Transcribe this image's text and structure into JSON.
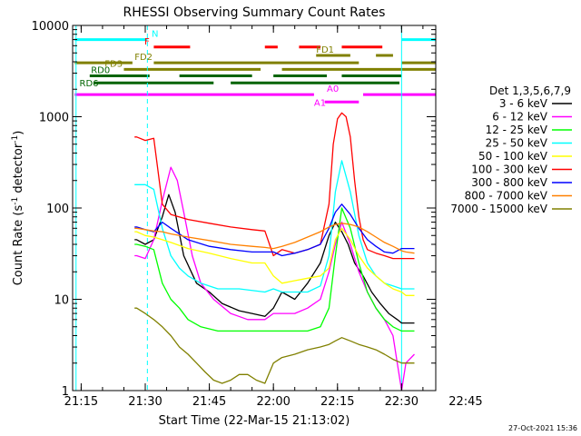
{
  "chart_data": {
    "type": "line",
    "title": "RHESSI Observing Summary Count Rates",
    "xlabel": "Start Time (22-Mar-15 21:13:02)",
    "ylabel_main": "Count Rate (s",
    "ylabel_sup1": "-1",
    "ylabel_mid": " detector",
    "ylabel_sup2": "-1",
    "ylabel_end": ")",
    "xlim": [
      13.0,
      98.0
    ],
    "ylim": [
      1,
      10000
    ],
    "yscale": "log",
    "xticks": [
      {
        "v": 15,
        "label": "21:15"
      },
      {
        "v": 30,
        "label": "21:30"
      },
      {
        "v": 45,
        "label": "21:45"
      },
      {
        "v": 60,
        "label": "22:00"
      },
      {
        "v": 75,
        "label": "22:15"
      },
      {
        "v": 90,
        "label": "22:30"
      },
      {
        "v": 105,
        "label": "22:45"
      }
    ],
    "yticks": [
      {
        "v": 1,
        "label": "1"
      },
      {
        "v": 10,
        "label": "10"
      },
      {
        "v": 100,
        "label": "100"
      },
      {
        "v": 1000,
        "label": "1000"
      },
      {
        "v": 10000,
        "label": "10000"
      }
    ],
    "legend_title": "Det 1,3,5,6,7,9",
    "legend_position": "right",
    "footer": "27-Oct-2021 15:36",
    "series": [
      {
        "name": "3 - 6 keV",
        "color": "#000000",
        "x": [
          27.5,
          28,
          30,
          32,
          34,
          35.5,
          37,
          39,
          42,
          45,
          48,
          52,
          55,
          58,
          60,
          62,
          65,
          68,
          71,
          73,
          74.5,
          76,
          77.5,
          79,
          81,
          83,
          85,
          87,
          89,
          90,
          91,
          93
        ],
        "y": [
          45,
          45,
          40,
          45,
          80,
          140,
          90,
          30,
          15,
          12,
          9,
          7.5,
          7,
          6.5,
          8,
          12,
          10,
          15,
          25,
          50,
          70,
          55,
          40,
          25,
          18,
          12,
          9,
          7,
          6,
          5.5,
          5.5,
          5.5
        ]
      },
      {
        "name": "6 - 12 keV",
        "color": "#ff00ff",
        "x": [
          27.5,
          28,
          30,
          32,
          34,
          36,
          37.5,
          39,
          41,
          43,
          46,
          50,
          54,
          58,
          60,
          62,
          65,
          68,
          71,
          73,
          74.5,
          76,
          78,
          80,
          82,
          84,
          86,
          88,
          89,
          90,
          91,
          93
        ],
        "y": [
          30,
          30,
          28,
          45,
          120,
          280,
          200,
          90,
          30,
          15,
          10,
          7,
          6,
          6,
          7,
          7,
          7,
          8,
          10,
          20,
          40,
          70,
          40,
          20,
          12,
          8,
          6,
          4,
          2,
          1,
          2,
          2.5
        ]
      },
      {
        "name": "12 - 25 keV",
        "color": "#00ff00",
        "x": [
          27.5,
          28,
          30,
          32,
          34,
          36,
          38,
          40,
          43,
          47,
          52,
          58,
          60,
          62,
          65,
          68,
          71,
          73,
          74.5,
          76,
          78,
          80,
          82,
          84,
          86,
          88,
          90,
          91,
          93
        ],
        "y": [
          40,
          40,
          38,
          35,
          15,
          10,
          8,
          6,
          5,
          4.5,
          4.5,
          4.5,
          4.5,
          4.5,
          4.5,
          4.5,
          5,
          8,
          30,
          100,
          60,
          25,
          12,
          8,
          6,
          5,
          4.5,
          4.5,
          4.5
        ]
      },
      {
        "name": "25 - 50 keV",
        "color": "#00ffff",
        "x": [
          27.5,
          28,
          30,
          32,
          34,
          36,
          38,
          40,
          43,
          47,
          52,
          58,
          60,
          62,
          65,
          68,
          71,
          73,
          74.5,
          76,
          78,
          80,
          82,
          84,
          86,
          88,
          90,
          91,
          93
        ],
        "y": [
          180,
          180,
          180,
          160,
          60,
          30,
          22,
          18,
          15,
          13,
          13,
          12,
          13,
          12,
          12,
          12,
          14,
          30,
          150,
          330,
          150,
          50,
          25,
          18,
          15,
          14,
          13,
          13,
          13
        ]
      },
      {
        "name": "50 - 100 keV",
        "color": "#ffff00",
        "x": [
          27.5,
          28,
          30,
          32,
          34,
          36,
          40,
          45,
          50,
          55,
          58,
          60,
          62,
          65,
          68,
          71,
          73,
          74.5,
          76,
          78,
          80,
          82,
          84,
          86,
          88,
          90,
          91,
          93
        ],
        "y": [
          55,
          55,
          50,
          48,
          45,
          42,
          36,
          32,
          28,
          25,
          25,
          18,
          15,
          16,
          17,
          18,
          22,
          45,
          60,
          45,
          30,
          22,
          18,
          15,
          13,
          12,
          11,
          11
        ]
      },
      {
        "name": "100 - 300 keV",
        "color": "#ff0000",
        "x": [
          27.5,
          28,
          30,
          32,
          34,
          36,
          40,
          45,
          50,
          55,
          58,
          60,
          62,
          65,
          68,
          71,
          73,
          74,
          75,
          76,
          77,
          78,
          79,
          80,
          81,
          82,
          84,
          86,
          88,
          90,
          91,
          93
        ],
        "y": [
          600,
          600,
          550,
          580,
          110,
          85,
          75,
          68,
          62,
          58,
          56,
          30,
          35,
          32,
          35,
          40,
          110,
          500,
          950,
          1100,
          1000,
          600,
          200,
          80,
          45,
          35,
          32,
          30,
          28,
          28,
          28,
          28
        ]
      },
      {
        "name": "300 - 800 keV",
        "color": "#0000ff",
        "x": [
          27.5,
          28,
          30,
          32,
          34,
          36,
          40,
          45,
          50,
          55,
          58,
          60,
          62,
          65,
          68,
          71,
          73,
          74.5,
          76,
          78,
          80,
          82,
          84,
          86,
          88,
          90,
          91,
          93
        ],
        "y": [
          62,
          62,
          58,
          55,
          70,
          60,
          45,
          38,
          35,
          33,
          33,
          33,
          30,
          32,
          35,
          40,
          60,
          90,
          110,
          85,
          60,
          45,
          38,
          33,
          32,
          36,
          36,
          36
        ]
      },
      {
        "name": "800 - 7000 keV",
        "color": "#ff8000",
        "x": [
          27.5,
          28,
          30,
          32,
          34,
          36,
          40,
          45,
          50,
          55,
          58,
          60,
          62,
          65,
          68,
          71,
          73,
          74.5,
          76,
          78,
          80,
          82,
          84,
          86,
          88,
          90,
          91,
          93
        ],
        "y": [
          60,
          60,
          58,
          56,
          55,
          52,
          48,
          44,
          40,
          38,
          37,
          36,
          38,
          42,
          48,
          55,
          62,
          66,
          68,
          66,
          62,
          55,
          48,
          42,
          38,
          34,
          33,
          32
        ]
      },
      {
        "name": "7000 - 15000 keV",
        "color": "#808000",
        "x": [
          27.5,
          28,
          30,
          32,
          34,
          36,
          38,
          40,
          42,
          44,
          46,
          48,
          50,
          52,
          54,
          56,
          58,
          60,
          62,
          65,
          68,
          71,
          73,
          74.5,
          76,
          78,
          80,
          82,
          84,
          86,
          88,
          90,
          91,
          93
        ],
        "y": [
          8,
          8,
          7,
          6,
          5,
          4,
          3,
          2.5,
          2,
          1.6,
          1.3,
          1.2,
          1.3,
          1.5,
          1.5,
          1.3,
          1.2,
          2,
          2.3,
          2.5,
          2.8,
          3,
          3.2,
          3.5,
          3.8,
          3.5,
          3.2,
          3,
          2.8,
          2.5,
          2.2,
          2,
          2,
          2
        ]
      }
    ],
    "flag_rows": [
      {
        "label": "N",
        "color": "#00ffff",
        "y": 7000,
        "segments": [
          [
            13.5,
            30.5
          ],
          [
            90,
            98
          ]
        ]
      },
      {
        "label": "F",
        "color": "#ff0000",
        "y": 5800,
        "segments": [
          [
            32,
            40.5
          ],
          [
            58,
            61
          ],
          [
            66,
            71
          ],
          [
            76,
            85.5
          ]
        ]
      },
      {
        "label": "FD1",
        "color": "#808000",
        "y": 4700,
        "segments": [
          [
            70,
            78
          ],
          [
            84,
            88
          ]
        ]
      },
      {
        "label": "FD2",
        "color": "#808000",
        "y": 3900,
        "segments": [
          [
            13.5,
            27
          ],
          [
            32,
            80
          ],
          [
            90,
            98
          ]
        ]
      },
      {
        "label": "FD3",
        "color": "#808000",
        "y": 3300,
        "segments": [
          [
            25,
            57
          ],
          [
            62,
            98
          ]
        ]
      },
      {
        "label": "RD0",
        "color": "#006400",
        "y": 2800,
        "segments": [
          [
            17,
            31
          ],
          [
            38,
            55
          ],
          [
            60,
            72.5
          ],
          [
            76,
            90
          ]
        ]
      },
      {
        "label": "RD6",
        "color": "#006400",
        "y": 2350,
        "segments": [
          [
            18,
            46
          ],
          [
            50,
            89.5
          ]
        ]
      },
      {
        "label": "A0",
        "color": "#ff00ff",
        "y": 1750,
        "segments": [
          [
            13.5,
            69.5
          ],
          [
            81,
            98
          ]
        ]
      },
      {
        "label": "A1",
        "color": "#ff00ff",
        "y": 1450,
        "segments": [
          [
            72,
            80
          ]
        ]
      }
    ],
    "vlines": [
      {
        "x": 13.8,
        "style": "solid"
      },
      {
        "x": 30.5,
        "style": "dashed"
      },
      {
        "x": 90.0,
        "style": "solid"
      },
      {
        "x": 104.0,
        "style": "dashed"
      }
    ]
  }
}
